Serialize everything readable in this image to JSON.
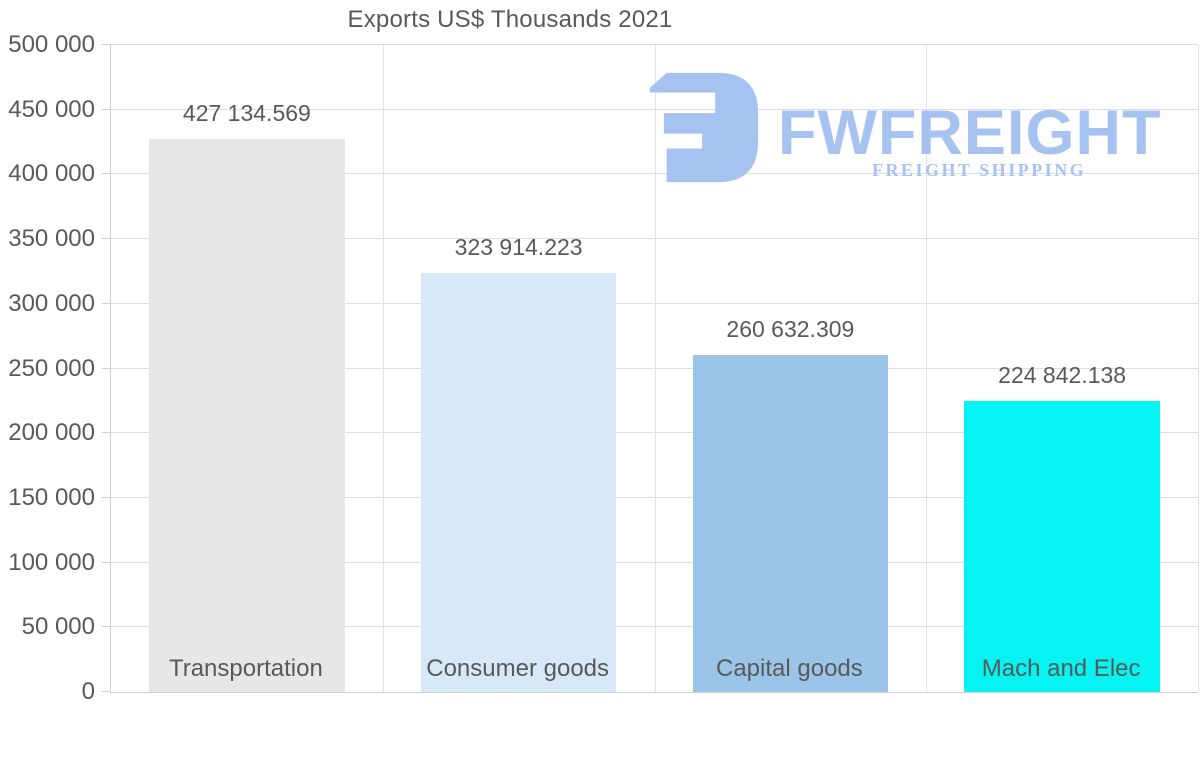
{
  "title": "Exports US$ Thousands 2021",
  "watermark": {
    "brand": "FWFREIGHT",
    "tagline": "FREIGHT SHIPPING",
    "color": "#a6c2f0"
  },
  "colors": {
    "text": "#595959",
    "gridline": "#dedede",
    "axis": "#cfcfcf",
    "background": "#ffffff"
  },
  "chart_data": {
    "type": "bar",
    "title": "Exports US$ Thousands 2021",
    "categories": [
      "Transportation",
      "Consumer goods",
      "Capital goods",
      "Mach and Elec"
    ],
    "values": [
      427134.569,
      323914.223,
      260632.309,
      224842.138
    ],
    "value_labels": [
      "427 134.569",
      "323 914.223",
      "260 632.309",
      "224 842.138"
    ],
    "bar_colors": [
      "#e7e7e7",
      "#d7e8f8",
      "#9ac5e8",
      "#04f4f4"
    ],
    "xlabel": "",
    "ylabel": "",
    "ylim": [
      0,
      500000
    ],
    "yticks": [
      0,
      50000,
      100000,
      150000,
      200000,
      250000,
      300000,
      350000,
      400000,
      450000,
      500000
    ],
    "ytick_labels": [
      "0",
      "50 000",
      "100 000",
      "150 000",
      "200 000",
      "250 000",
      "300 000",
      "350 000",
      "400 000",
      "450 000",
      "500 000"
    ],
    "grid": "horizontal-ticks-and-category-boundaries",
    "legend": "none"
  }
}
